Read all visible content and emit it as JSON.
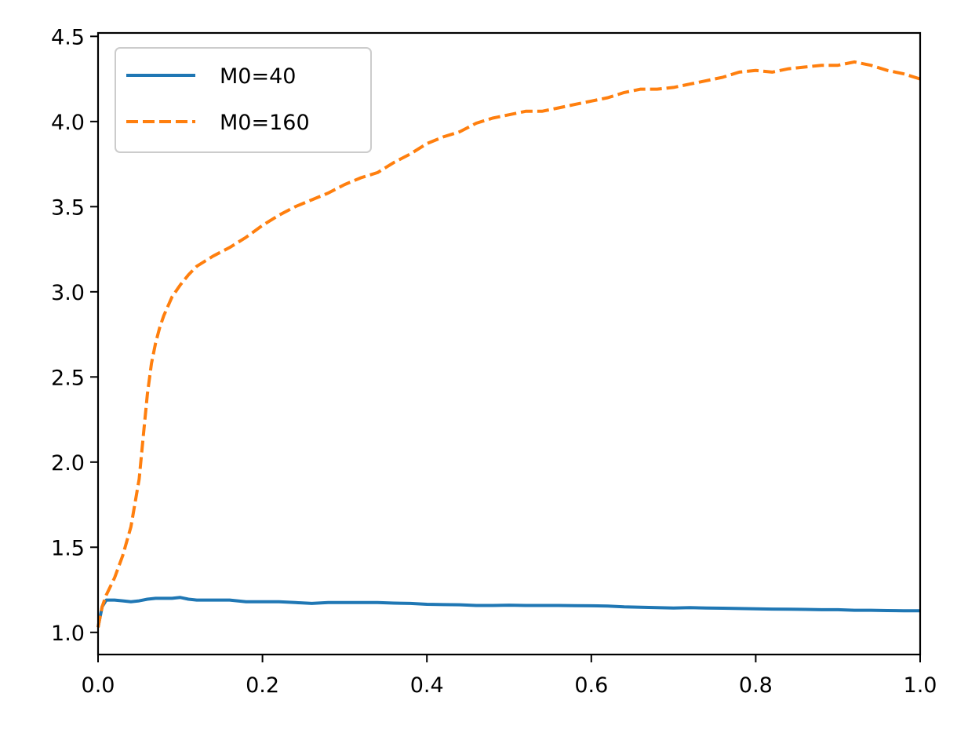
{
  "chart_data": {
    "type": "line",
    "title": "",
    "xlabel": "",
    "ylabel": "",
    "xlim": [
      0.0,
      1.0
    ],
    "ylim": [
      0.87,
      4.52
    ],
    "xticks": [
      0.0,
      0.2,
      0.4,
      0.6,
      0.8,
      1.0
    ],
    "yticks": [
      1.0,
      1.5,
      2.0,
      2.5,
      3.0,
      3.5,
      4.0,
      4.5
    ],
    "xtick_labels": [
      "0.0",
      "0.2",
      "0.4",
      "0.6",
      "0.8",
      "1.0"
    ],
    "ytick_labels": [
      "1.0",
      "1.5",
      "2.0",
      "2.5",
      "3.0",
      "3.5",
      "4.0",
      "4.5"
    ],
    "grid": false,
    "legend_position": "top-left",
    "series": [
      {
        "name": "M0=40",
        "color": "#1f77b4",
        "style": "solid",
        "x": [
          0.0,
          0.005,
          0.01,
          0.02,
          0.03,
          0.04,
          0.05,
          0.06,
          0.07,
          0.08,
          0.09,
          0.1,
          0.11,
          0.12,
          0.14,
          0.16,
          0.18,
          0.2,
          0.22,
          0.24,
          0.26,
          0.28,
          0.3,
          0.32,
          0.34,
          0.36,
          0.38,
          0.4,
          0.42,
          0.44,
          0.46,
          0.48,
          0.5,
          0.52,
          0.54,
          0.56,
          0.58,
          0.6,
          0.62,
          0.64,
          0.66,
          0.68,
          0.7,
          0.72,
          0.74,
          0.76,
          0.78,
          0.8,
          0.82,
          0.84,
          0.86,
          0.88,
          0.9,
          0.92,
          0.94,
          0.96,
          0.98,
          1.0
        ],
        "y": [
          1.03,
          1.15,
          1.19,
          1.19,
          1.185,
          1.18,
          1.185,
          1.195,
          1.2,
          1.2,
          1.2,
          1.205,
          1.195,
          1.19,
          1.19,
          1.19,
          1.18,
          1.18,
          1.18,
          1.175,
          1.17,
          1.175,
          1.175,
          1.175,
          1.175,
          1.172,
          1.17,
          1.165,
          1.163,
          1.162,
          1.158,
          1.158,
          1.16,
          1.158,
          1.158,
          1.158,
          1.157,
          1.156,
          1.155,
          1.15,
          1.148,
          1.145,
          1.143,
          1.145,
          1.143,
          1.142,
          1.14,
          1.138,
          1.137,
          1.136,
          1.135,
          1.133,
          1.133,
          1.13,
          1.13,
          1.128,
          1.127,
          1.127
        ]
      },
      {
        "name": "M0=160",
        "color": "#ff7f0e",
        "style": "dashed",
        "x": [
          0.0,
          0.005,
          0.01,
          0.02,
          0.03,
          0.04,
          0.05,
          0.055,
          0.06,
          0.065,
          0.07,
          0.075,
          0.08,
          0.09,
          0.1,
          0.11,
          0.12,
          0.13,
          0.14,
          0.16,
          0.18,
          0.2,
          0.22,
          0.24,
          0.26,
          0.28,
          0.3,
          0.32,
          0.34,
          0.36,
          0.38,
          0.4,
          0.42,
          0.44,
          0.46,
          0.48,
          0.5,
          0.52,
          0.54,
          0.56,
          0.58,
          0.6,
          0.62,
          0.64,
          0.66,
          0.68,
          0.7,
          0.72,
          0.74,
          0.76,
          0.78,
          0.8,
          0.82,
          0.84,
          0.86,
          0.88,
          0.9,
          0.92,
          0.94,
          0.96,
          0.98,
          1.0
        ],
        "y": [
          1.03,
          1.15,
          1.22,
          1.32,
          1.45,
          1.62,
          1.9,
          2.15,
          2.4,
          2.58,
          2.7,
          2.79,
          2.86,
          2.97,
          3.04,
          3.1,
          3.15,
          3.18,
          3.21,
          3.26,
          3.32,
          3.39,
          3.45,
          3.5,
          3.54,
          3.58,
          3.63,
          3.67,
          3.7,
          3.76,
          3.81,
          3.87,
          3.91,
          3.94,
          3.99,
          4.02,
          4.04,
          4.06,
          4.06,
          4.08,
          4.1,
          4.12,
          4.14,
          4.17,
          4.19,
          4.19,
          4.2,
          4.22,
          4.24,
          4.26,
          4.29,
          4.3,
          4.29,
          4.31,
          4.32,
          4.33,
          4.33,
          4.35,
          4.33,
          4.3,
          4.28,
          4.25
        ]
      }
    ]
  }
}
